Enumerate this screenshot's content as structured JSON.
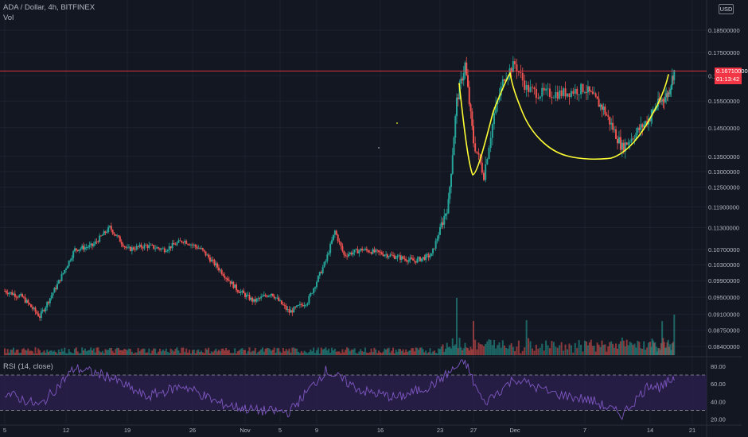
{
  "header": {
    "symbol_line": "ADA / Dollar, 4h, BITFINEX",
    "volume_label": "Vol",
    "rsi_label": "RSI (14, close)"
  },
  "currency_badge": "USD",
  "last_price": {
    "label": "0.16710000",
    "countdown": "01:13:42",
    "value": 0.1671
  },
  "colors": {
    "background": "#131722",
    "grid": "#1e2230",
    "text": "#b2b5be",
    "up": "#26a69a",
    "down": "#ef5350",
    "rsi_line": "#7e57c2",
    "rsi_band": "#2a1f4a",
    "annotation": "#ffff33",
    "last_price": "#f23645"
  },
  "chart_data": [
    {
      "type": "candlestick",
      "title": "ADA / Dollar, 4h, BITFINEX",
      "y_scale": "log",
      "ylim": [
        0.081,
        0.193
      ],
      "y_ticks": [
        "0.18500000",
        "0.17500000",
        "0.16500000",
        "0.15500000",
        "0.14500000",
        "0.13500000",
        "0.13000000",
        "0.12500000",
        "0.11900000",
        "0.11300000",
        "0.10700000",
        "0.10300000",
        "0.09900000",
        "0.09500000",
        "0.09100000",
        "0.08750000",
        "0.08400000"
      ],
      "x_ticks": [
        "5",
        "12",
        "19",
        "26",
        "Nov",
        "5",
        "9",
        "16",
        "23",
        "27",
        "Dec",
        "7",
        "14",
        "21"
      ],
      "x_range_days": [
        "2020-10-05",
        "2020-12-22"
      ],
      "grid": true,
      "approx_close_path": [
        {
          "date": "2020-10-05",
          "close": 0.0965
        },
        {
          "date": "2020-10-07",
          "close": 0.095
        },
        {
          "date": "2020-10-09",
          "close": 0.0905
        },
        {
          "date": "2020-10-11",
          "close": 0.098
        },
        {
          "date": "2020-10-13",
          "close": 0.107
        },
        {
          "date": "2020-10-15",
          "close": 0.108
        },
        {
          "date": "2020-10-17",
          "close": 0.113
        },
        {
          "date": "2020-10-19",
          "close": 0.107
        },
        {
          "date": "2020-10-21",
          "close": 0.108
        },
        {
          "date": "2020-10-23",
          "close": 0.107
        },
        {
          "date": "2020-10-25",
          "close": 0.1095
        },
        {
          "date": "2020-10-27",
          "close": 0.107
        },
        {
          "date": "2020-10-29",
          "close": 0.102
        },
        {
          "date": "2020-10-31",
          "close": 0.097
        },
        {
          "date": "2020-11-02",
          "close": 0.094
        },
        {
          "date": "2020-11-04",
          "close": 0.096
        },
        {
          "date": "2020-11-06",
          "close": 0.0915
        },
        {
          "date": "2020-11-08",
          "close": 0.094
        },
        {
          "date": "2020-11-10",
          "close": 0.104
        },
        {
          "date": "2020-11-11",
          "close": 0.112
        },
        {
          "date": "2020-11-12",
          "close": 0.1055
        },
        {
          "date": "2020-11-14",
          "close": 0.107
        },
        {
          "date": "2020-11-16",
          "close": 0.106
        },
        {
          "date": "2020-11-18",
          "close": 0.105
        },
        {
          "date": "2020-11-20",
          "close": 0.104
        },
        {
          "date": "2020-11-22",
          "close": 0.1055
        },
        {
          "date": "2020-11-24",
          "close": 0.12
        },
        {
          "date": "2020-11-25",
          "close": 0.155
        },
        {
          "date": "2020-11-26",
          "close": 0.17
        },
        {
          "date": "2020-11-27",
          "close": 0.14
        },
        {
          "date": "2020-11-28",
          "close": 0.129
        },
        {
          "date": "2020-11-29",
          "close": 0.15
        },
        {
          "date": "2020-11-30",
          "close": 0.165
        },
        {
          "date": "2020-12-01",
          "close": 0.17
        },
        {
          "date": "2020-12-02",
          "close": 0.16
        },
        {
          "date": "2020-12-03",
          "close": 0.158
        },
        {
          "date": "2020-12-05",
          "close": 0.158
        },
        {
          "date": "2020-12-07",
          "close": 0.16
        },
        {
          "date": "2020-12-09",
          "close": 0.152
        },
        {
          "date": "2020-12-11",
          "close": 0.138
        },
        {
          "date": "2020-12-13",
          "close": 0.145
        },
        {
          "date": "2020-12-15",
          "close": 0.153
        },
        {
          "date": "2020-12-17",
          "close": 0.158
        },
        {
          "date": "2020-12-18",
          "close": 0.1671
        }
      ],
      "volume": {
        "label": "Vol",
        "spikes_on": [
          "2020-11-25",
          "2020-11-27",
          "2020-12-02",
          "2020-12-16",
          "2020-12-18"
        ]
      },
      "annotations": [
        {
          "type": "freehand",
          "shape": "cup-and-handle",
          "color": "#ffff33"
        },
        {
          "type": "horizontal_line",
          "value": 0.1671,
          "color": "#f23645"
        }
      ]
    },
    {
      "type": "line",
      "title": "RSI (14, close)",
      "ylim": [
        15,
        88
      ],
      "y_ticks": [
        "80.00",
        "60.00",
        "40.00",
        "20.00"
      ],
      "bands": [
        70,
        30
      ],
      "approx_values": [
        {
          "date": "2020-10-05",
          "value": 50
        },
        {
          "date": "2020-10-09",
          "value": 35
        },
        {
          "date": "2020-10-13",
          "value": 78
        },
        {
          "date": "2020-10-17",
          "value": 68
        },
        {
          "date": "2020-10-21",
          "value": 45
        },
        {
          "date": "2020-10-25",
          "value": 58
        },
        {
          "date": "2020-10-29",
          "value": 38
        },
        {
          "date": "2020-11-02",
          "value": 30
        },
        {
          "date": "2020-11-06",
          "value": 28
        },
        {
          "date": "2020-11-10",
          "value": 75
        },
        {
          "date": "2020-11-14",
          "value": 52
        },
        {
          "date": "2020-11-18",
          "value": 44
        },
        {
          "date": "2020-11-22",
          "value": 58
        },
        {
          "date": "2020-11-26",
          "value": 86
        },
        {
          "date": "2020-11-28",
          "value": 38
        },
        {
          "date": "2020-12-01",
          "value": 66
        },
        {
          "date": "2020-12-04",
          "value": 50
        },
        {
          "date": "2020-12-08",
          "value": 40
        },
        {
          "date": "2020-12-11",
          "value": 25
        },
        {
          "date": "2020-12-14",
          "value": 60
        },
        {
          "date": "2020-12-16",
          "value": 55
        },
        {
          "date": "2020-12-18",
          "value": 68
        }
      ]
    }
  ]
}
